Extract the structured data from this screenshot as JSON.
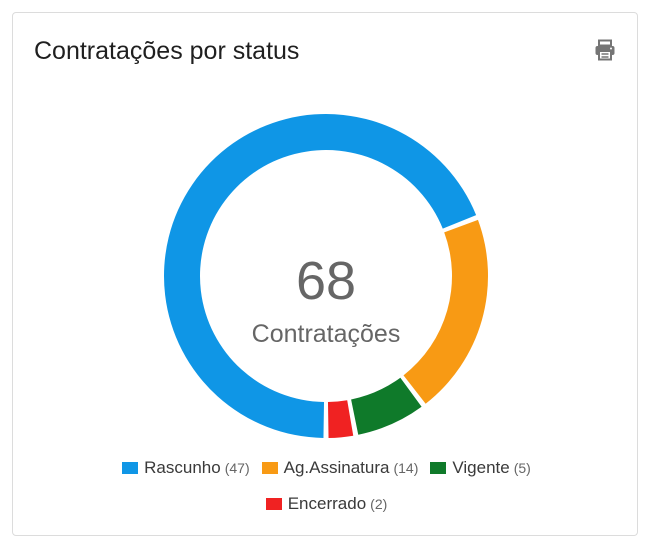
{
  "card": {
    "title": "Contratações por status",
    "print_icon": "printer-icon"
  },
  "center": {
    "total": "68",
    "label": "Contratações"
  },
  "chart_data": {
    "type": "pie",
    "variant": "donut",
    "categories": [
      "Rascunho",
      "Ag.Assinatura",
      "Vigente",
      "Encerrado"
    ],
    "values": [
      47,
      14,
      5,
      2
    ],
    "colors": [
      "#0f96e6",
      "#f89a14",
      "#0f7a2a",
      "#f02222"
    ],
    "legend": "bottom"
  },
  "legend": [
    {
      "label": "Rascunho",
      "count": "(47)",
      "color": "#0f96e6"
    },
    {
      "label": "Ag.Assinatura",
      "count": "(14)",
      "color": "#f89a14"
    },
    {
      "label": "Vigente",
      "count": "(5)",
      "color": "#0f7a2a"
    },
    {
      "label": "Encerrado",
      "count": "(2)",
      "color": "#f02222"
    }
  ]
}
